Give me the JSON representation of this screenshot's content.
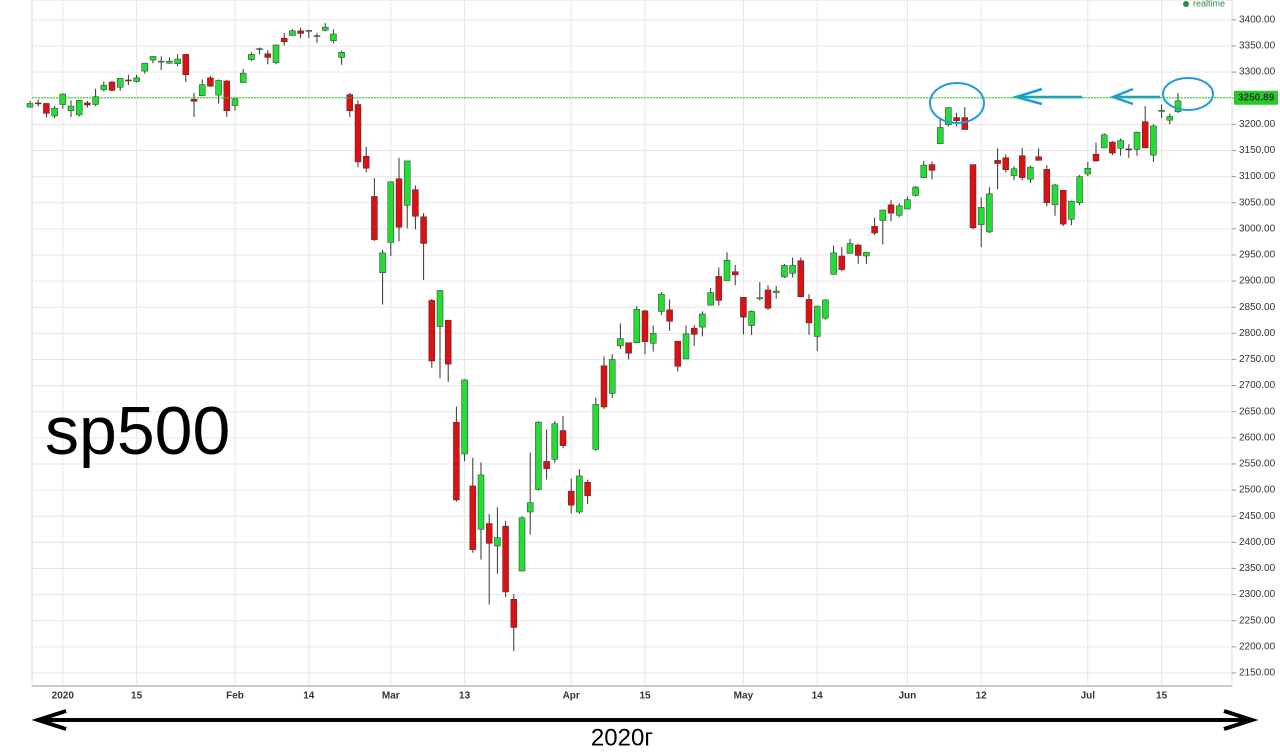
{
  "chart_data": {
    "type": "candlestick",
    "title": "sp500",
    "x_label": "2020г",
    "status": "realtime",
    "last_price": 3250.89,
    "categories": [
      null,
      null,
      null,
      null,
      "2020",
      null,
      null,
      null,
      null,
      null,
      null,
      null,
      null,
      "15",
      null,
      null,
      null,
      null,
      null,
      null,
      null,
      null,
      null,
      null,
      null,
      "Feb",
      null,
      null,
      null,
      null,
      null,
      null,
      null,
      null,
      "14",
      null,
      null,
      null,
      null,
      null,
      null,
      null,
      null,
      null,
      "Mar",
      null,
      null,
      null,
      null,
      null,
      null,
      null,
      null,
      "13",
      null,
      null,
      null,
      null,
      null,
      null,
      null,
      null,
      null,
      null,
      null,
      null,
      "Apr",
      null,
      null,
      null,
      null,
      null,
      null,
      null,
      null,
      "15",
      null,
      null,
      null,
      null,
      null,
      null,
      null,
      null,
      null,
      null,
      null,
      "May",
      null,
      null,
      null,
      null,
      null,
      null,
      null,
      null,
      "14",
      null,
      null,
      null,
      null,
      null,
      null,
      null,
      null,
      null,
      null,
      "Jun",
      null,
      null,
      null,
      null,
      null,
      null,
      null,
      null,
      "12",
      null,
      null,
      null,
      null,
      null,
      null,
      null,
      null,
      null,
      null,
      null,
      null,
      "Jul",
      null,
      null,
      null,
      null,
      null,
      null,
      null,
      null,
      "15",
      null,
      null
    ],
    "open": [
      3233,
      3241,
      3240,
      3216,
      3238,
      3226,
      3218,
      3241,
      3238,
      3266,
      3281,
      3271,
      3285,
      3282,
      3302,
      3323,
      3321,
      3317,
      3316,
      3334,
      3248,
      3255,
      3289,
      3256,
      3283,
      3236,
      3280,
      3324,
      3344,
      3335,
      3318,
      3365,
      3370,
      3379,
      3378,
      3370,
      3380,
      3360,
      3328,
      3257,
      3238,
      3139,
      3062,
      2916,
      2974,
      3096,
      3045,
      3075,
      3023,
      2863,
      2813,
      2825,
      2630,
      2569,
      2508,
      2425,
      2436,
      2393,
      2431,
      2291,
      2345,
      2458,
      2501,
      2555,
      2559,
      2614,
      2498,
      2458,
      2515,
      2578,
      2738,
      2685,
      2776,
      2782,
      2782,
      2843,
      2781,
      2842,
      2845,
      2785,
      2751,
      2810,
      2812,
      2854,
      2909,
      2901,
      2918,
      2869,
      2815,
      2868,
      2883,
      2878,
      2908,
      2915,
      2939,
      2865,
      2794,
      2829,
      2913,
      2948,
      2953,
      2969,
      2948,
      3005,
      3016,
      3046,
      3026,
      3038,
      3064,
      3098,
      3123,
      3163,
      3199,
      3213,
      3213,
      3123,
      3008,
      2994,
      3131,
      3136,
      3102,
      3140,
      3095,
      3138,
      3114,
      3046,
      3074,
      3018,
      3050,
      3105,
      3143,
      3155,
      3166,
      3154,
      3153,
      3152,
      3205,
      3141,
      3225,
      3208,
      3224
    ],
    "high": [
      3245,
      3248,
      3241,
      3235,
      3259,
      3246,
      3247,
      3245,
      3268,
      3282,
      3283,
      3288,
      3295,
      3295,
      3318,
      3330,
      3330,
      3328,
      3334,
      3335,
      3260,
      3286,
      3293,
      3286,
      3285,
      3250,
      3306,
      3338,
      3347,
      3342,
      3353,
      3375,
      3382,
      3385,
      3381,
      3375,
      3394,
      3382,
      3341,
      3260,
      3246,
      3157,
      3097,
      2960,
      3091,
      3136,
      3130,
      3083,
      3030,
      2866,
      2883,
      2826,
      2660,
      2712,
      2562,
      2553,
      2454,
      2467,
      2441,
      2301,
      2450,
      2572,
      2632,
      2616,
      2632,
      2642,
      2522,
      2540,
      2520,
      2677,
      2756,
      2760,
      2819,
      2782,
      2852,
      2845,
      2815,
      2879,
      2865,
      2785,
      2815,
      2816,
      2842,
      2887,
      2926,
      2955,
      2931,
      2869,
      2844,
      2898,
      2892,
      2891,
      2933,
      2945,
      2945,
      2875,
      2853,
      2865,
      2968,
      2965,
      2981,
      2971,
      2956,
      3021,
      3037,
      3055,
      3049,
      3062,
      3082,
      3130,
      3129,
      3212,
      3233,
      3222,
      3233,
      3123,
      3060,
      3080,
      3154,
      3142,
      3120,
      3155,
      3121,
      3154,
      3122,
      3086,
      3074,
      3054,
      3103,
      3128,
      3165,
      3183,
      3168,
      3173,
      3162,
      3186,
      3235,
      3200,
      3238,
      3221,
      3260
    ],
    "low": [
      3232,
      3234,
      3213,
      3212,
      3230,
      3214,
      3215,
      3232,
      3235,
      3263,
      3263,
      3264,
      3275,
      3280,
      3297,
      3317,
      3304,
      3316,
      3311,
      3281,
      3214,
      3254,
      3272,
      3240,
      3214,
      3226,
      3280,
      3321,
      3334,
      3315,
      3315,
      3351,
      3370,
      3365,
      3365,
      3356,
      3378,
      3355,
      3314,
      3214,
      3118,
      3108,
      2977,
      2855,
      2948,
      2976,
      3001,
      2999,
      2902,
      2734,
      2714,
      2707,
      2478,
      2555,
      2380,
      2367,
      2281,
      2340,
      2295,
      2192,
      2345,
      2415,
      2499,
      2520,
      2552,
      2580,
      2455,
      2455,
      2473,
      2575,
      2655,
      2676,
      2770,
      2750,
      2782,
      2760,
      2765,
      2835,
      2805,
      2727,
      2751,
      2776,
      2794,
      2853,
      2853,
      2901,
      2892,
      2798,
      2797,
      2863,
      2845,
      2866,
      2906,
      2907,
      2869,
      2797,
      2766,
      2826,
      2912,
      2919,
      2953,
      2933,
      2933,
      2988,
      2970,
      3014,
      3022,
      3037,
      3062,
      3097,
      3095,
      3163,
      3196,
      3196,
      3190,
      2999,
      2965,
      2992,
      3076,
      3108,
      3093,
      3093,
      3088,
      3131,
      3043,
      3025,
      3005,
      3007,
      3045,
      3101,
      3128,
      3155,
      3141,
      3140,
      3136,
      3140,
      3155,
      3128,
      3212,
      3200,
      3222
    ],
    "close": [
      3240,
      3240,
      3221,
      3231,
      3258,
      3235,
      3246,
      3237,
      3253,
      3275,
      3265,
      3288,
      3283,
      3289,
      3317,
      3330,
      3321,
      3321,
      3325,
      3295,
      3244,
      3276,
      3273,
      3284,
      3226,
      3249,
      3298,
      3334,
      3345,
      3328,
      3352,
      3358,
      3379,
      3374,
      3380,
      3370,
      3386,
      3373,
      3338,
      3226,
      3128,
      3116,
      2979,
      2954,
      3090,
      3003,
      3130,
      3024,
      2972,
      2747,
      2882,
      2741,
      2481,
      2711,
      2386,
      2529,
      2398,
      2409,
      2305,
      2237,
      2447,
      2476,
      2630,
      2541,
      2627,
      2585,
      2471,
      2527,
      2489,
      2664,
      2659,
      2750,
      2790,
      2762,
      2846,
      2784,
      2800,
      2875,
      2823,
      2737,
      2799,
      2798,
      2837,
      2878,
      2863,
      2940,
      2912,
      2831,
      2842,
      2868,
      2848,
      2881,
      2930,
      2930,
      2870,
      2820,
      2852,
      2864,
      2954,
      2922,
      2972,
      2949,
      2955,
      2992,
      3036,
      3030,
      3044,
      3056,
      3080,
      3122,
      3112,
      3194,
      3232,
      3207,
      3190,
      3002,
      3041,
      3067,
      3125,
      3113,
      3115,
      3098,
      3118,
      3131,
      3050,
      3084,
      3009,
      3053,
      3100,
      3116,
      3130,
      3180,
      3145,
      3169,
      3152,
      3185,
      3155,
      3197,
      3227,
      3215,
      3245
    ],
    "up_color": "#22dd33",
    "down_color": "#dd1111",
    "ylim": [
      2125,
      3438
    ],
    "yticks": [
      {
        "value": 2150,
        "label": "2150.00"
      },
      {
        "value": 2200,
        "label": "2200.00"
      },
      {
        "value": 2250,
        "label": "2250.00"
      },
      {
        "value": 2300,
        "label": "2300.00"
      },
      {
        "value": 2350,
        "label": "2350.00"
      },
      {
        "value": 2400,
        "label": "2400.00"
      },
      {
        "value": 2450,
        "label": "2450.00"
      },
      {
        "value": 2500,
        "label": "2500.00"
      },
      {
        "value": 2550,
        "label": "2550.00"
      },
      {
        "value": 2600,
        "label": "2600.00"
      },
      {
        "value": 2650,
        "label": "2650.00"
      },
      {
        "value": 2700,
        "label": "2700.00"
      },
      {
        "value": 2750,
        "label": "2750.00"
      },
      {
        "value": 2800,
        "label": "2800.00"
      },
      {
        "value": 2850,
        "label": "2850.00"
      },
      {
        "value": 2900,
        "label": "2900.00"
      },
      {
        "value": 2950,
        "label": "2950.00"
      },
      {
        "value": 3000,
        "label": "3000.00"
      },
      {
        "value": 3050,
        "label": "3050.00"
      },
      {
        "value": 3100,
        "label": "3100.00"
      },
      {
        "value": 3150,
        "label": "3150.00"
      },
      {
        "value": 3200,
        "label": "3200.00"
      },
      {
        "value": 3250,
        "label": "3250.00"
      },
      {
        "value": 3300,
        "label": "3300.00"
      },
      {
        "value": 3350,
        "label": "3350.00"
      },
      {
        "value": 3400,
        "label": "3400.00"
      }
    ],
    "grid": true
  }
}
